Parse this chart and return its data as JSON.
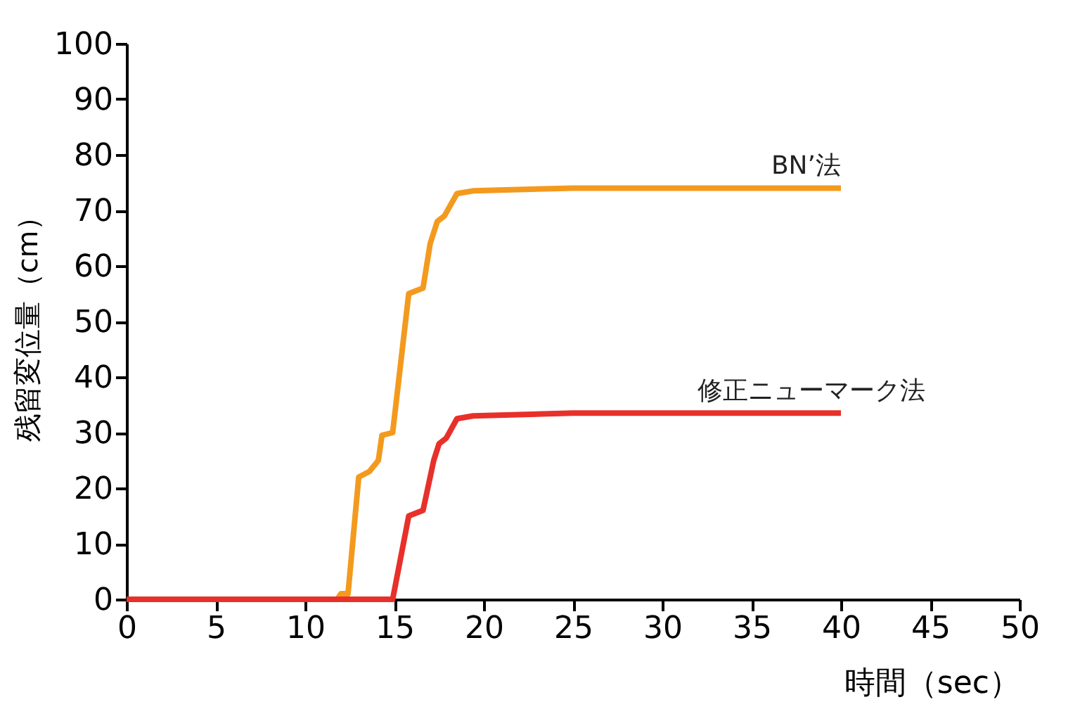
{
  "chart_data": {
    "type": "line",
    "xlabel": "時間（sec）",
    "ylabel": "残留変位量（cm）",
    "xlim": [
      0,
      50
    ],
    "ylim": [
      0,
      100
    ],
    "xticks": [
      0,
      5,
      10,
      15,
      20,
      25,
      30,
      35,
      40,
      45,
      50
    ],
    "yticks": [
      0,
      10,
      20,
      30,
      40,
      50,
      60,
      70,
      80,
      90,
      100
    ],
    "grid": false,
    "legend": false,
    "marker": "none",
    "line_style": "solid",
    "series": [
      {
        "name": "BN’法",
        "color": "#f39a1e",
        "x": [
          0,
          11.8,
          12.0,
          12.4,
          12.6,
          13.0,
          13.6,
          14.1,
          14.3,
          14.9,
          15.8,
          16.6,
          17.0,
          17.4,
          17.8,
          18.5,
          19.4,
          25,
          40
        ],
        "values": [
          0,
          0,
          1,
          1,
          8,
          22,
          23,
          25,
          29.5,
          30,
          55,
          56,
          64,
          68,
          69,
          73,
          73.5,
          74,
          74
        ]
      },
      {
        "name": "修正ニューマーク法",
        "color": "#e8302a",
        "x": [
          0,
          14.9,
          15.5,
          15.8,
          16.6,
          17.2,
          17.5,
          17.9,
          18.5,
          19.4,
          25,
          40
        ],
        "values": [
          0,
          0,
          10,
          15,
          16,
          25,
          28,
          29,
          32.5,
          33,
          33.5,
          33.5
        ]
      }
    ]
  }
}
